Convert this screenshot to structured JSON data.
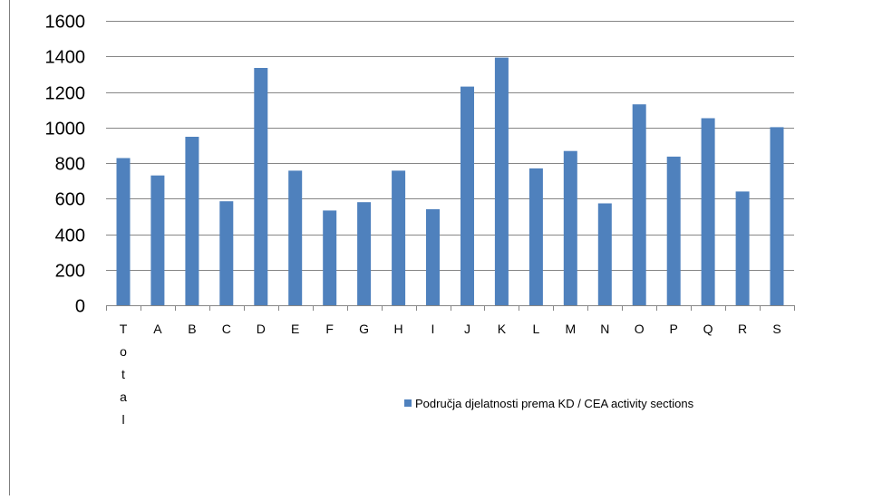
{
  "chart_data": {
    "type": "bar",
    "categories": [
      "Total",
      "A",
      "B",
      "C",
      "D",
      "E",
      "F",
      "G",
      "H",
      "I",
      "J",
      "K",
      "L",
      "M",
      "N",
      "O",
      "P",
      "Q",
      "R",
      "S"
    ],
    "series": [
      {
        "name": "Područja djelatnosti prema KD / CEA activity sections",
        "values": [
          828,
          730,
          948,
          585,
          1335,
          757,
          533,
          580,
          757,
          540,
          1230,
          1393,
          770,
          868,
          573,
          1130,
          836,
          1052,
          640,
          1002
        ]
      }
    ],
    "ylim": [
      0,
      1600
    ],
    "yticks": [
      0,
      200,
      400,
      600,
      800,
      1000,
      1200,
      1400,
      1600
    ],
    "grid": true,
    "legend_position": "bottom-right",
    "colors": {
      "bar": "#4f81bd",
      "gridline": "#868686",
      "axis": "#868686",
      "text": "#000000",
      "frame": "#7f7f7f"
    }
  }
}
